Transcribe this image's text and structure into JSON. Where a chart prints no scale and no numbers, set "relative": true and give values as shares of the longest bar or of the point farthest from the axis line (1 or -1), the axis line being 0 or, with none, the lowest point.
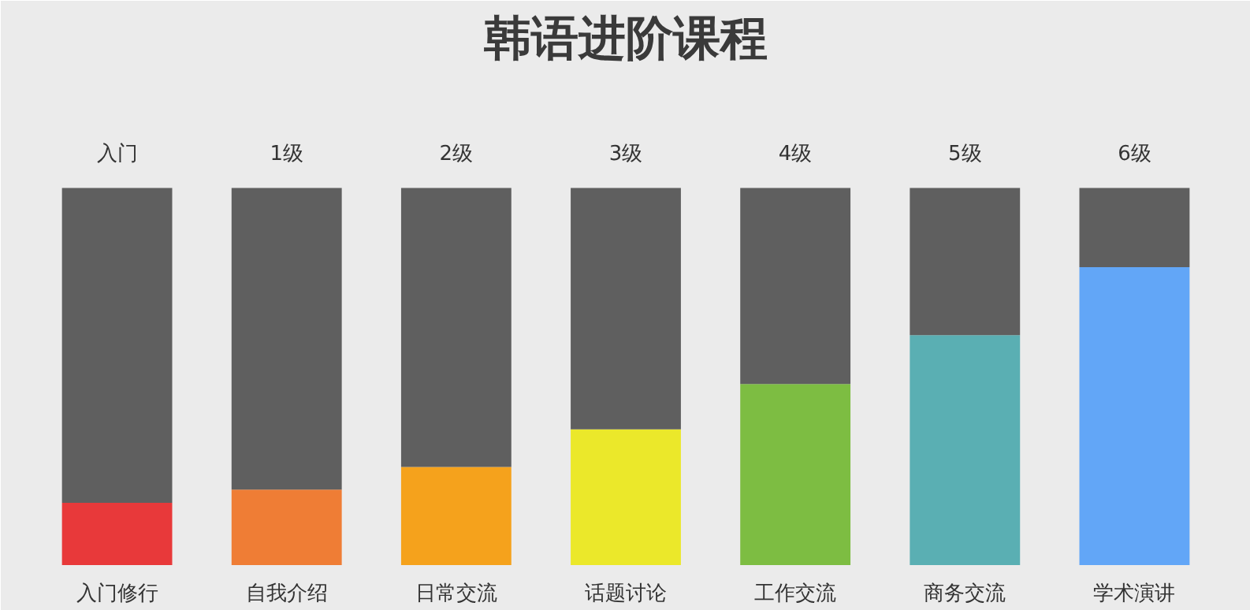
{
  "chart_data": {
    "type": "bar",
    "title": "韩语进阶课程",
    "relative": true,
    "stacked": true,
    "categories": [
      "入门修行",
      "自我介绍",
      "日常交流",
      "话题讨论",
      "工作交流",
      "商务交流",
      "学术演讲"
    ],
    "series": [
      {
        "colors": [
          "#e8393a",
          "#ef7d35",
          "#f5a21c",
          "#ebe82a",
          "#7dbd42",
          "#5aafb3",
          "#62a6f7"
        ],
        "values": [
          0.165,
          0.2,
          0.26,
          0.36,
          0.48,
          0.61,
          0.79
        ]
      },
      {
        "color": "#5f5f5f",
        "values": [
          0.835,
          0.8,
          0.74,
          0.64,
          0.52,
          0.39,
          0.21
        ]
      }
    ],
    "annotations": [
      {
        "text": "入门",
        "x": "入门修行",
        "y": 1
      },
      {
        "text": "1级",
        "x": "自我介绍",
        "y": 1
      },
      {
        "text": "2级",
        "x": "日常交流",
        "y": 1
      },
      {
        "text": "3级",
        "x": "话题讨论",
        "y": 1
      },
      {
        "text": "4级",
        "x": "工作交流",
        "y": 1
      },
      {
        "text": "5级",
        "x": "商务交流",
        "y": 1
      },
      {
        "text": "6级",
        "x": "学术演讲",
        "y": 1
      }
    ]
  }
}
